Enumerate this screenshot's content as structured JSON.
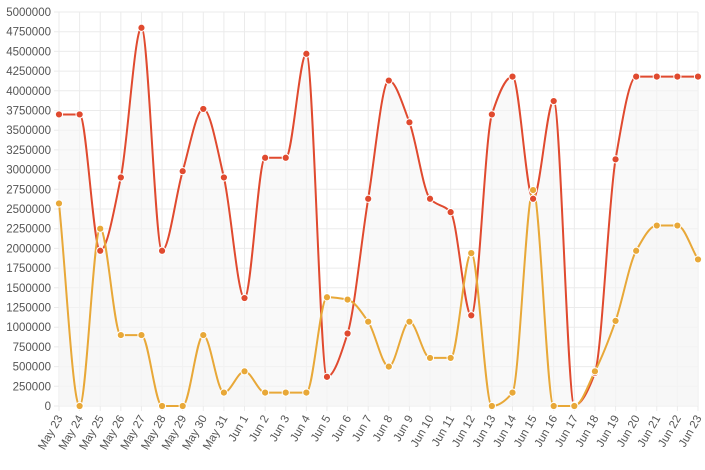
{
  "chart_data": {
    "type": "line",
    "title": "",
    "xlabel": "",
    "ylabel": "",
    "categories": [
      "May 23",
      "May 24",
      "May 25",
      "May 26",
      "May 27",
      "May 28",
      "May 29",
      "May 30",
      "May 31",
      "Jun 1",
      "Jun 2",
      "Jun 3",
      "Jun 4",
      "Jun 5",
      "Jun 6",
      "Jun 7",
      "Jun 8",
      "Jun 9",
      "Jun 10",
      "Jun 11",
      "Jun 12",
      "Jun 13",
      "Jun 14",
      "Jun 15",
      "Jun 16",
      "Jun 17",
      "Jun 18",
      "Jun 19",
      "Jun 20",
      "Jun 21",
      "Jun 22",
      "Jun 23"
    ],
    "ylim": [
      0,
      5000000
    ],
    "yticks": [
      0,
      250000,
      500000,
      750000,
      1000000,
      1250000,
      1500000,
      1750000,
      2000000,
      2250000,
      2500000,
      2750000,
      3000000,
      3250000,
      3500000,
      3750000,
      4000000,
      4250000,
      4500000,
      4750000,
      5000000
    ],
    "grid": true,
    "legend": "none",
    "series": [
      {
        "color": "#e04a2f",
        "fill": "#f5f5f5",
        "values": [
          3700000,
          3700000,
          1970000,
          2900000,
          4800000,
          1970000,
          2980000,
          3770000,
          2900000,
          1370000,
          3150000,
          3150000,
          4470000,
          370000,
          920000,
          2630000,
          4130000,
          3600000,
          2630000,
          2460000,
          1150000,
          3700000,
          4180000,
          2630000,
          3870000,
          10000,
          420000,
          3130000,
          4180000,
          4180000,
          4180000,
          4180000
        ]
      },
      {
        "color": "#e8a838",
        "fill": "#f5f5f5",
        "values": [
          2570000,
          0,
          2250000,
          900000,
          900000,
          0,
          0,
          900000,
          170000,
          440000,
          170000,
          170000,
          170000,
          1380000,
          1350000,
          1070000,
          500000,
          1070000,
          610000,
          610000,
          1940000,
          0,
          170000,
          2740000,
          0,
          0,
          440000,
          1080000,
          1970000,
          2290000,
          2290000,
          1860000
        ]
      }
    ]
  }
}
